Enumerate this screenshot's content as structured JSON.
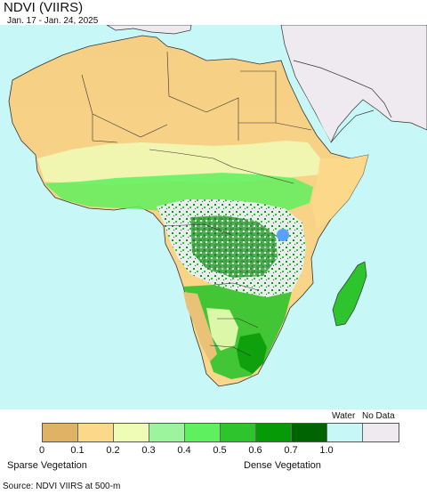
{
  "title": "NDVI (VIIRS)",
  "subtitle": "Jan. 17 - Jan. 24, 2025",
  "map": {
    "region": "Africa",
    "ocean_color": "#c8f7f7",
    "no_data_region_color": "#eeeaf0"
  },
  "legend": {
    "header_water": "Water",
    "header_nodata": "No Data",
    "swatches": [
      {
        "color": "#e0b266"
      },
      {
        "color": "#fcd98a"
      },
      {
        "color": "#eefcb6"
      },
      {
        "color": "#9cf49c"
      },
      {
        "color": "#5ef05e"
      },
      {
        "color": "#2ec42e"
      },
      {
        "color": "#069a06"
      },
      {
        "color": "#006400"
      },
      {
        "color": "#c8f7f7"
      },
      {
        "color": "#eeeaf0"
      }
    ],
    "ticks": [
      "0",
      "0.1",
      "0.2",
      "0.3",
      "0.4",
      "0.5",
      "0.6",
      "0.7",
      "1.0"
    ],
    "low_label": "Sparse Vegetation",
    "high_label": "Dense Vegetation"
  },
  "source": "Source: NDVI VIIRS at 500-m"
}
